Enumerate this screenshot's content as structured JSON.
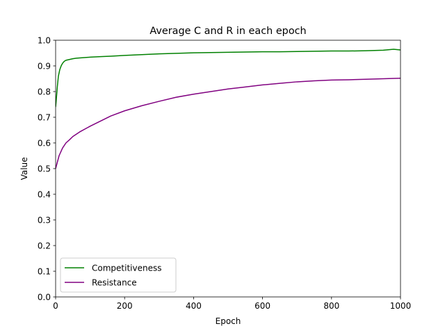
{
  "chart_data": {
    "type": "line",
    "title": "Average C and R in each epoch",
    "xlabel": "Epoch",
    "ylabel": "Value",
    "xlim": [
      0,
      1000
    ],
    "ylim": [
      0.0,
      1.0
    ],
    "xticks": [
      0,
      200,
      400,
      600,
      800,
      1000
    ],
    "xtick_labels": [
      "0",
      "200",
      "400",
      "600",
      "800",
      "1000"
    ],
    "yticks": [
      0.0,
      0.1,
      0.2,
      0.3,
      0.4,
      0.5,
      0.6,
      0.7,
      0.8,
      0.9,
      1.0
    ],
    "ytick_labels": [
      "0.0",
      "0.1",
      "0.2",
      "0.3",
      "0.4",
      "0.5",
      "0.6",
      "0.7",
      "0.8",
      "0.9",
      "1.0"
    ],
    "grid": false,
    "legend_position": "lower-left",
    "series": [
      {
        "name": "Competitiveness",
        "color": "#008000",
        "x": [
          0,
          2,
          5,
          8,
          12,
          16,
          20,
          25,
          30,
          40,
          50,
          60,
          80,
          100,
          130,
          160,
          200,
          250,
          300,
          350,
          400,
          450,
          500,
          550,
          600,
          650,
          700,
          750,
          800,
          850,
          900,
          950,
          980,
          1000
        ],
        "y": [
          0.74,
          0.77,
          0.82,
          0.86,
          0.885,
          0.9,
          0.91,
          0.918,
          0.922,
          0.925,
          0.928,
          0.93,
          0.932,
          0.934,
          0.936,
          0.938,
          0.941,
          0.944,
          0.947,
          0.949,
          0.951,
          0.952,
          0.953,
          0.954,
          0.955,
          0.955,
          0.956,
          0.957,
          0.958,
          0.958,
          0.959,
          0.961,
          0.965,
          0.962
        ]
      },
      {
        "name": "Resistance",
        "color": "#800080",
        "x": [
          0,
          5,
          10,
          20,
          30,
          40,
          50,
          70,
          100,
          130,
          160,
          200,
          250,
          300,
          350,
          400,
          450,
          500,
          550,
          600,
          650,
          700,
          750,
          800,
          850,
          900,
          950,
          1000
        ],
        "y": [
          0.5,
          0.525,
          0.55,
          0.58,
          0.6,
          0.612,
          0.625,
          0.643,
          0.665,
          0.685,
          0.705,
          0.725,
          0.745,
          0.762,
          0.778,
          0.79,
          0.8,
          0.81,
          0.818,
          0.826,
          0.832,
          0.838,
          0.842,
          0.845,
          0.846,
          0.848,
          0.85,
          0.852
        ]
      }
    ]
  }
}
